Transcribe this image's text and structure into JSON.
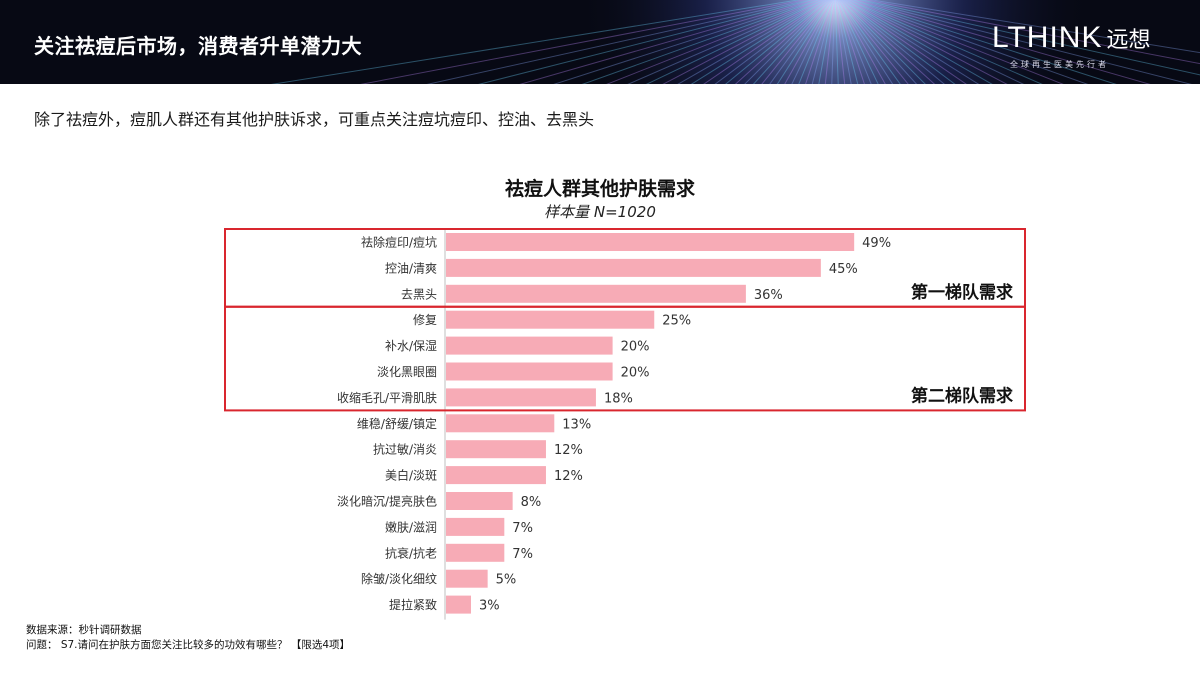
{
  "header": {
    "title": "关注祛痘后市场，消费者升单潜力大",
    "brand_name": "LTHINK",
    "brand_cn": "远想",
    "brand_tagline": "全球再生医美先行者"
  },
  "subtitle": "除了祛痘外，痘肌人群还有其他护肤诉求，可重点关注痘坑痘印、控油、去黑头",
  "chart_data": {
    "type": "bar",
    "orientation": "horizontal",
    "title": "祛痘人群其他护肤需求",
    "subtitle": "样本量 N=1020",
    "categories": [
      "祛除痘印/痘坑",
      "控油/清爽",
      "去黑头",
      "修复",
      "补水/保湿",
      "淡化黑眼圈",
      "收缩毛孔/平滑肌肤",
      "维稳/舒缓/镇定",
      "抗过敏/消炎",
      "美白/淡斑",
      "淡化暗沉/提亮肤色",
      "嫩肤/滋润",
      "抗衰/抗老",
      "除皱/淡化细纹",
      "提拉紧致"
    ],
    "values": [
      49,
      45,
      36,
      25,
      20,
      20,
      18,
      13,
      12,
      12,
      8,
      7,
      7,
      5,
      3
    ],
    "value_labels": [
      "49%",
      "45%",
      "36%",
      "25%",
      "20%",
      "20%",
      "18%",
      "13%",
      "12%",
      "12%",
      "8%",
      "7%",
      "7%",
      "5%",
      "3%"
    ],
    "unit": "%",
    "xlim": [
      0,
      50
    ],
    "bar_color": "#f7abb6",
    "highlight_color": "#d9262e",
    "groups": [
      {
        "label": "第一梯队需求",
        "start": 0,
        "end": 2
      },
      {
        "label": "第二梯队需求",
        "start": 3,
        "end": 6
      }
    ]
  },
  "footer": {
    "source": "数据来源：秒针调研数据",
    "question": "问题： S7.请问在护肤方面您关注比较多的功效有哪些？ 【限选4项】"
  }
}
